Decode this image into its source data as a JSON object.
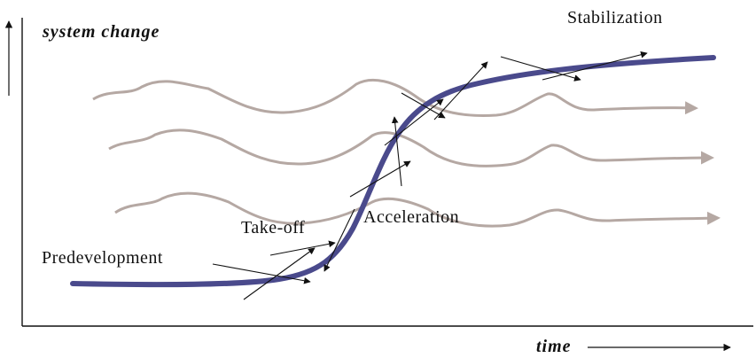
{
  "axes": {
    "y_label": "system change",
    "x_label": "time"
  },
  "phases": {
    "predevelopment": "Predevelopment",
    "take_off": "Take-off",
    "acceleration": "Acceleration",
    "stabilization": "Stabilization"
  },
  "colors": {
    "transition_curve": "#4a4a8c",
    "background_waves": "#b5a8a3",
    "arrows": "#111111",
    "axis": "#111111"
  }
}
